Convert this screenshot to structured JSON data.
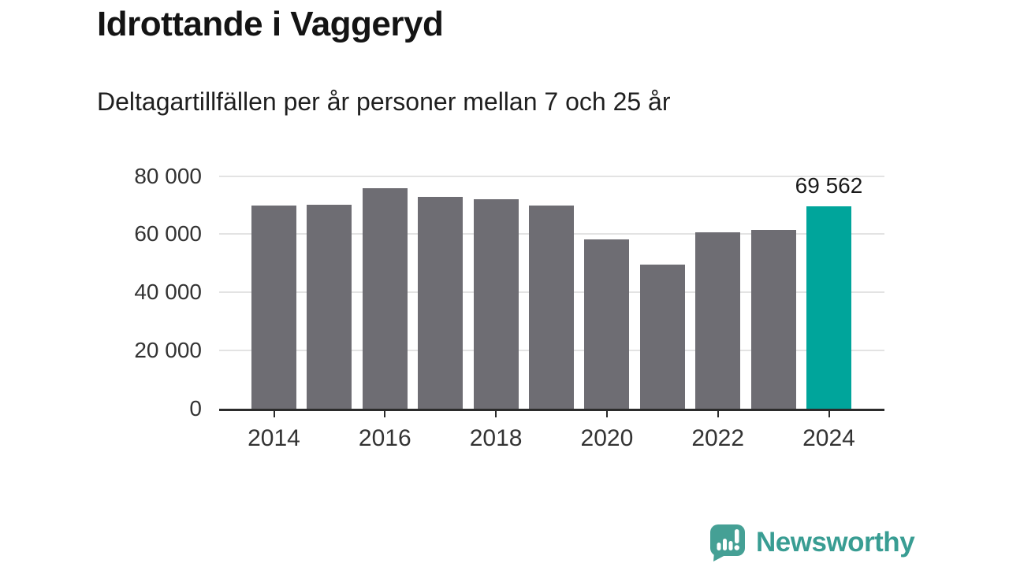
{
  "chart_data": {
    "type": "bar",
    "title": "Idrottande i Vaggeryd",
    "subtitle": "Deltagartillfällen per år personer mellan 7 och 25 år",
    "categories": [
      "2014",
      "2015",
      "2016",
      "2017",
      "2018",
      "2019",
      "2020",
      "2021",
      "2022",
      "2023",
      "2024"
    ],
    "values": [
      69800,
      70100,
      75800,
      72800,
      72000,
      69900,
      58200,
      49600,
      60700,
      61500,
      69562
    ],
    "xlabel": "",
    "ylabel": "",
    "ylim": [
      0,
      80000
    ],
    "ytick_values": [
      0,
      20000,
      40000,
      60000,
      80000
    ],
    "ytick_labels": [
      "0",
      "20 000",
      "40 000",
      "60 000",
      "80 000"
    ],
    "xtick_labels": [
      "2014",
      "2016",
      "2018",
      "2020",
      "2022",
      "2024"
    ],
    "grid": "horizontal",
    "legend": "none",
    "bar_color": "#6e6d73",
    "highlight": {
      "index": 10,
      "color": "#00a59b"
    },
    "annotation": {
      "text": "69 562",
      "index": 10
    }
  },
  "colors": {
    "background": "#ffffff",
    "axis": "#2b2b2b",
    "gridline": "#e3e3e3",
    "tick_label": "#333333",
    "annotation_text": "#1a1a1a"
  },
  "footer": {
    "brand_name": "Newsworthy",
    "brand_text_color": "#399d93",
    "brand_icon_color": "#45a095",
    "brand_icon_glyph_color": "#ffffff"
  }
}
